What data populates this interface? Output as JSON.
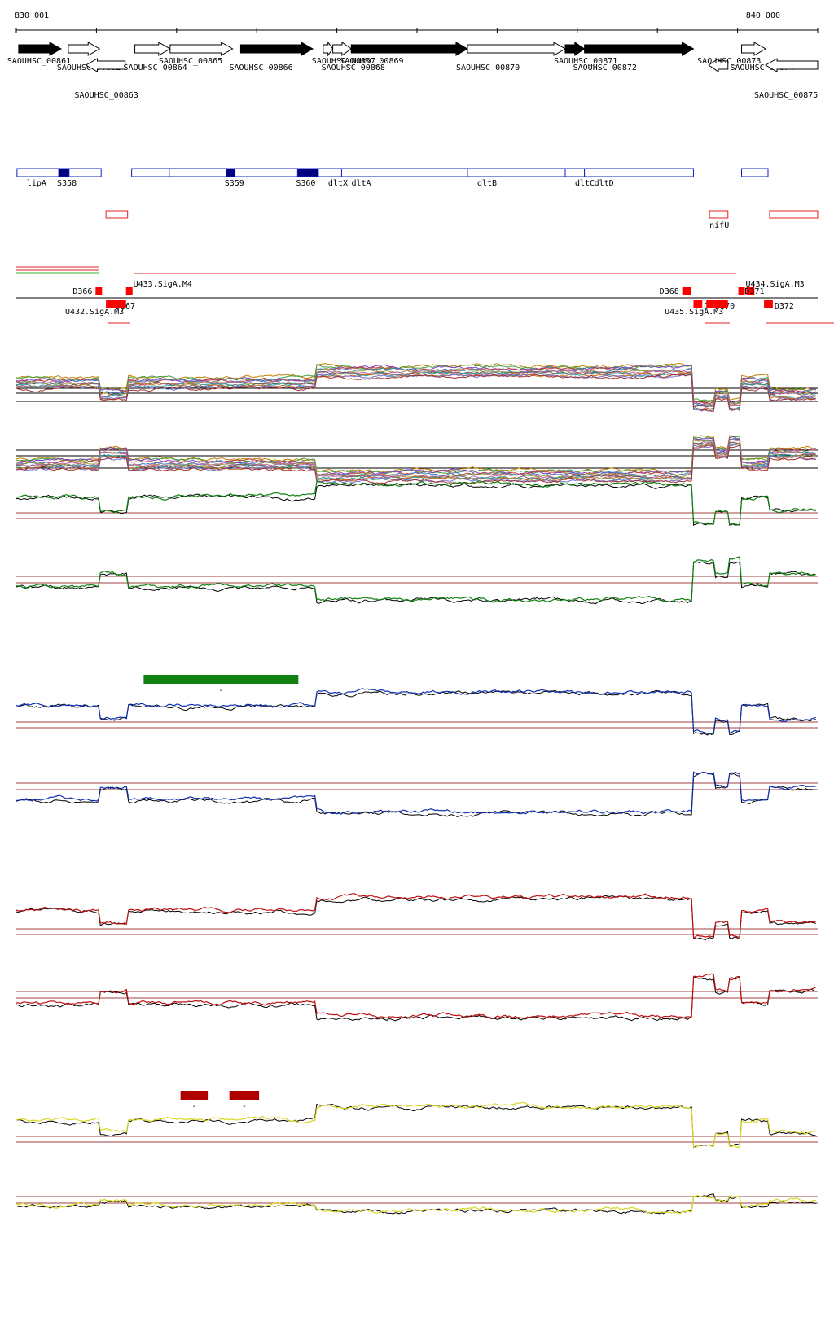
{
  "scale": {
    "start_label": "830 001",
    "end_label": "840 000",
    "start": 830001,
    "end": 840000
  },
  "genes": [
    {
      "id": "SAOUHSC_00861",
      "strand": "+",
      "style": "filled",
      "start": 830030,
      "end": 830560
    },
    {
      "id": "SAOUHSC_00862",
      "strand": "+",
      "style": "open",
      "start": 830650,
      "end": 831040
    },
    {
      "id": "SAOUHSC_00863",
      "strand": "-",
      "style": "open",
      "start": 830870,
      "end": 831360
    },
    {
      "id": "SAOUHSC_00864",
      "strand": "+",
      "style": "open",
      "start": 831480,
      "end": 831920
    },
    {
      "id": "SAOUHSC_00865",
      "strand": "+",
      "style": "open",
      "start": 831920,
      "end": 832700
    },
    {
      "id": "SAOUHSC_00866",
      "strand": "+",
      "style": "filled",
      "start": 832800,
      "end": 833700
    },
    {
      "id": "SAOUHSC_00867",
      "strand": "+",
      "style": "open",
      "start": 833830,
      "end": 833950
    },
    {
      "id": "SAOUHSC_00868",
      "strand": "+",
      "style": "open",
      "start": 833950,
      "end": 834180
    },
    {
      "id": "SAOUHSC_00869",
      "strand": "+",
      "style": "filled",
      "start": 834180,
      "end": 835630
    },
    {
      "id": "SAOUHSC_00870",
      "strand": "+",
      "style": "open",
      "start": 835630,
      "end": 836850
    },
    {
      "id": "SAOUHSC_00871",
      "strand": "+",
      "style": "filled",
      "start": 836850,
      "end": 837090
    },
    {
      "id": "SAOUHSC_00872",
      "strand": "+",
      "style": "filled",
      "start": 837090,
      "end": 838450
    },
    {
      "id": "SAOUHSC_00873",
      "strand": "-",
      "style": "open",
      "start": 838640,
      "end": 838880
    },
    {
      "id": "SAOUHSC_00874",
      "strand": "+",
      "style": "open",
      "start": 839050,
      "end": 839350
    },
    {
      "id": "SAOUHSC_00875",
      "strand": "-",
      "style": "open",
      "start": 839350,
      "end": 840000
    }
  ],
  "operons": [
    {
      "name": "lipA",
      "start": 830010,
      "end": 831060
    },
    {
      "name": "S358",
      "start": 830530,
      "end": 830660,
      "filled": true
    },
    {
      "name": "",
      "start": 831440,
      "end": 831910
    },
    {
      "name": "",
      "start": 831910,
      "end": 834880
    },
    {
      "name": "S359",
      "start": 832620,
      "end": 832730,
      "filled": true
    },
    {
      "name": "S360",
      "start": 833510,
      "end": 833770,
      "filled": true
    },
    {
      "name": "dltX",
      "start": 833770,
      "end": 834060
    },
    {
      "name": "dltA",
      "start": 834060,
      "end": 835630
    },
    {
      "name": "dltB",
      "start": 835630,
      "end": 836850
    },
    {
      "name": "dltC",
      "start": 836850,
      "end": 837090
    },
    {
      "name": "dltD",
      "start": 837090,
      "end": 838450
    },
    {
      "name": "",
      "start": 839050,
      "end": 839380
    }
  ],
  "red_boxes": [
    {
      "name": "",
      "start": 831120,
      "end": 831390
    },
    {
      "name": "nifU",
      "start": 838650,
      "end": 838880
    },
    {
      "name": "",
      "start": 839400,
      "end": 840000
    }
  ],
  "transcription_units": [
    {
      "label": "D366",
      "start": 830990,
      "end": 831060,
      "side": "up"
    },
    {
      "label": "D367",
      "start": 831120,
      "end": 831220,
      "side": "down"
    },
    {
      "label": "U432.SigA.M3",
      "start": 831220,
      "end": 831370,
      "side": "down"
    },
    {
      "label": "U433.SigA.M4",
      "start": 831370,
      "end": 831440,
      "side": "up"
    },
    {
      "label": "D368",
      "start": 838310,
      "end": 838420,
      "side": "up"
    },
    {
      "label": "D",
      "start": 838450,
      "end": 838560,
      "side": "down"
    },
    {
      "label": "D370",
      "start": 838610,
      "end": 838700,
      "side": "down"
    },
    {
      "label": "U435.SigA.M3",
      "start": 838700,
      "end": 838880,
      "side": "down"
    },
    {
      "label": "U434.SigA.M3",
      "start": 839010,
      "end": 839080,
      "side": "up"
    },
    {
      "label": "D371",
      "start": 839110,
      "end": 839210,
      "side": "up"
    },
    {
      "label": "D372",
      "start": 839330,
      "end": 839440,
      "side": "down"
    }
  ],
  "segment_bars": [
    {
      "color": "#108010",
      "start": 831590,
      "end": 833520,
      "label": "-"
    },
    {
      "color": "#b00000",
      "start": 832050,
      "end": 832390,
      "label": "-"
    },
    {
      "color": "#b00000",
      "start": 832660,
      "end": 833030,
      "label": "-"
    }
  ],
  "tracks": [
    {
      "name": "many-condition",
      "color": "multi",
      "strand": "forward"
    },
    {
      "name": "many-condition",
      "color": "multi",
      "strand": "reverse"
    },
    {
      "name": "green",
      "color": "#108010",
      "strand": "forward"
    },
    {
      "name": "green",
      "color": "#108010",
      "strand": "reverse"
    },
    {
      "name": "blue",
      "color": "#1030b0",
      "strand": "forward"
    },
    {
      "name": "blue",
      "color": "#1030b0",
      "strand": "reverse"
    },
    {
      "name": "red",
      "color": "#c01010",
      "strand": "forward"
    },
    {
      "name": "red",
      "color": "#c01010",
      "strand": "reverse"
    },
    {
      "name": "yellow",
      "color": "#d8d820",
      "strand": "forward"
    },
    {
      "name": "yellow",
      "color": "#d8d820",
      "strand": "reverse"
    }
  ]
}
